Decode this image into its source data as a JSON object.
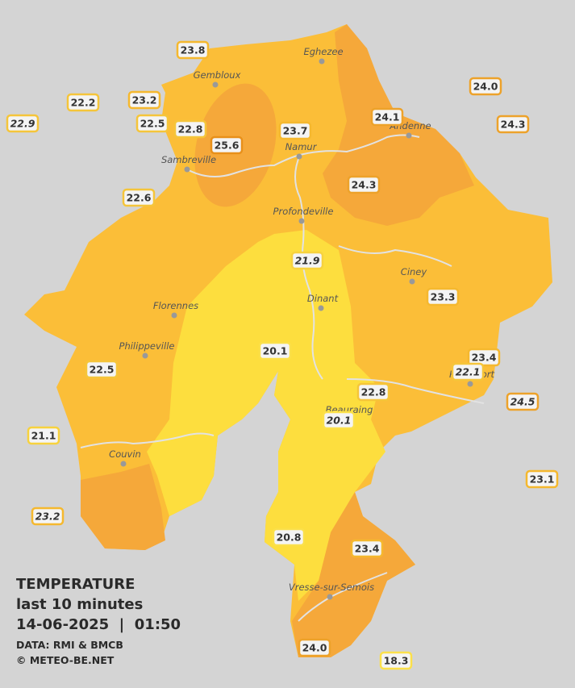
{
  "legend": {
    "title": "TEMPERATURE",
    "subtitle": "last 10 minutes",
    "datetime": "14-06-2025  |  01:50",
    "source": "DATA: RMI & BMCB",
    "copyright": "© METEO-BE.NET"
  },
  "cities": [
    {
      "name": "Gembloux"
    },
    {
      "name": "Eghezee"
    },
    {
      "name": "Andenne"
    },
    {
      "name": "Namur"
    },
    {
      "name": "Sambreville"
    },
    {
      "name": "Profondeville"
    },
    {
      "name": "Ciney"
    },
    {
      "name": "Dinant"
    },
    {
      "name": "Florennes"
    },
    {
      "name": "Philippeville"
    },
    {
      "name": "Rochefort"
    },
    {
      "name": "Beauraing"
    },
    {
      "name": "Couvin"
    },
    {
      "name": "Vresse-sur-Semois"
    }
  ],
  "stations": [
    {
      "label": "23.8",
      "color": "#f5b82e"
    },
    {
      "label": "22.2",
      "color": "#f5c53a"
    },
    {
      "label": "23.2",
      "color": "#f5b82e"
    },
    {
      "label": "22.9",
      "color": "#f5c53a",
      "italic": true
    },
    {
      "label": "22.5",
      "color": "#f5c53a"
    },
    {
      "label": "22.8",
      "color": "#f5c53a"
    },
    {
      "label": "25.6",
      "color": "#e8901a"
    },
    {
      "label": "23.7",
      "color": "#f5b82e"
    },
    {
      "label": "24.1",
      "color": "#eda22a"
    },
    {
      "label": "24.0",
      "color": "#eda22a"
    },
    {
      "label": "24.3",
      "color": "#eda22a"
    },
    {
      "label": "24.3",
      "color": "#eda22a"
    },
    {
      "label": "22.6",
      "color": "#f5c53a"
    },
    {
      "label": "21.9",
      "color": "#f7d23e",
      "italic": true
    },
    {
      "label": "23.3",
      "color": "#f5b82e"
    },
    {
      "label": "20.1",
      "color": "#fbe04a"
    },
    {
      "label": "23.4",
      "color": "#f5b82e"
    },
    {
      "label": "22.1",
      "color": "#f5c53a",
      "italic": true
    },
    {
      "label": "22.5",
      "color": "#f5c53a"
    },
    {
      "label": "22.8",
      "color": "#f5c53a"
    },
    {
      "label": "24.5",
      "color": "#eda22a",
      "italic": true
    },
    {
      "label": "20.1",
      "color": "#fbe04a",
      "italic": true
    },
    {
      "label": "21.1",
      "color": "#f7d23e"
    },
    {
      "label": "23.1",
      "color": "#f5b82e"
    },
    {
      "label": "23.2",
      "color": "#f5b82e",
      "italic": true
    },
    {
      "label": "20.8",
      "color": "#fbe04a"
    },
    {
      "label": "23.4",
      "color": "#f5b82e"
    },
    {
      "label": "24.0",
      "color": "#eda22a"
    },
    {
      "label": "18.3",
      "color": "#fbe04a"
    }
  ]
}
